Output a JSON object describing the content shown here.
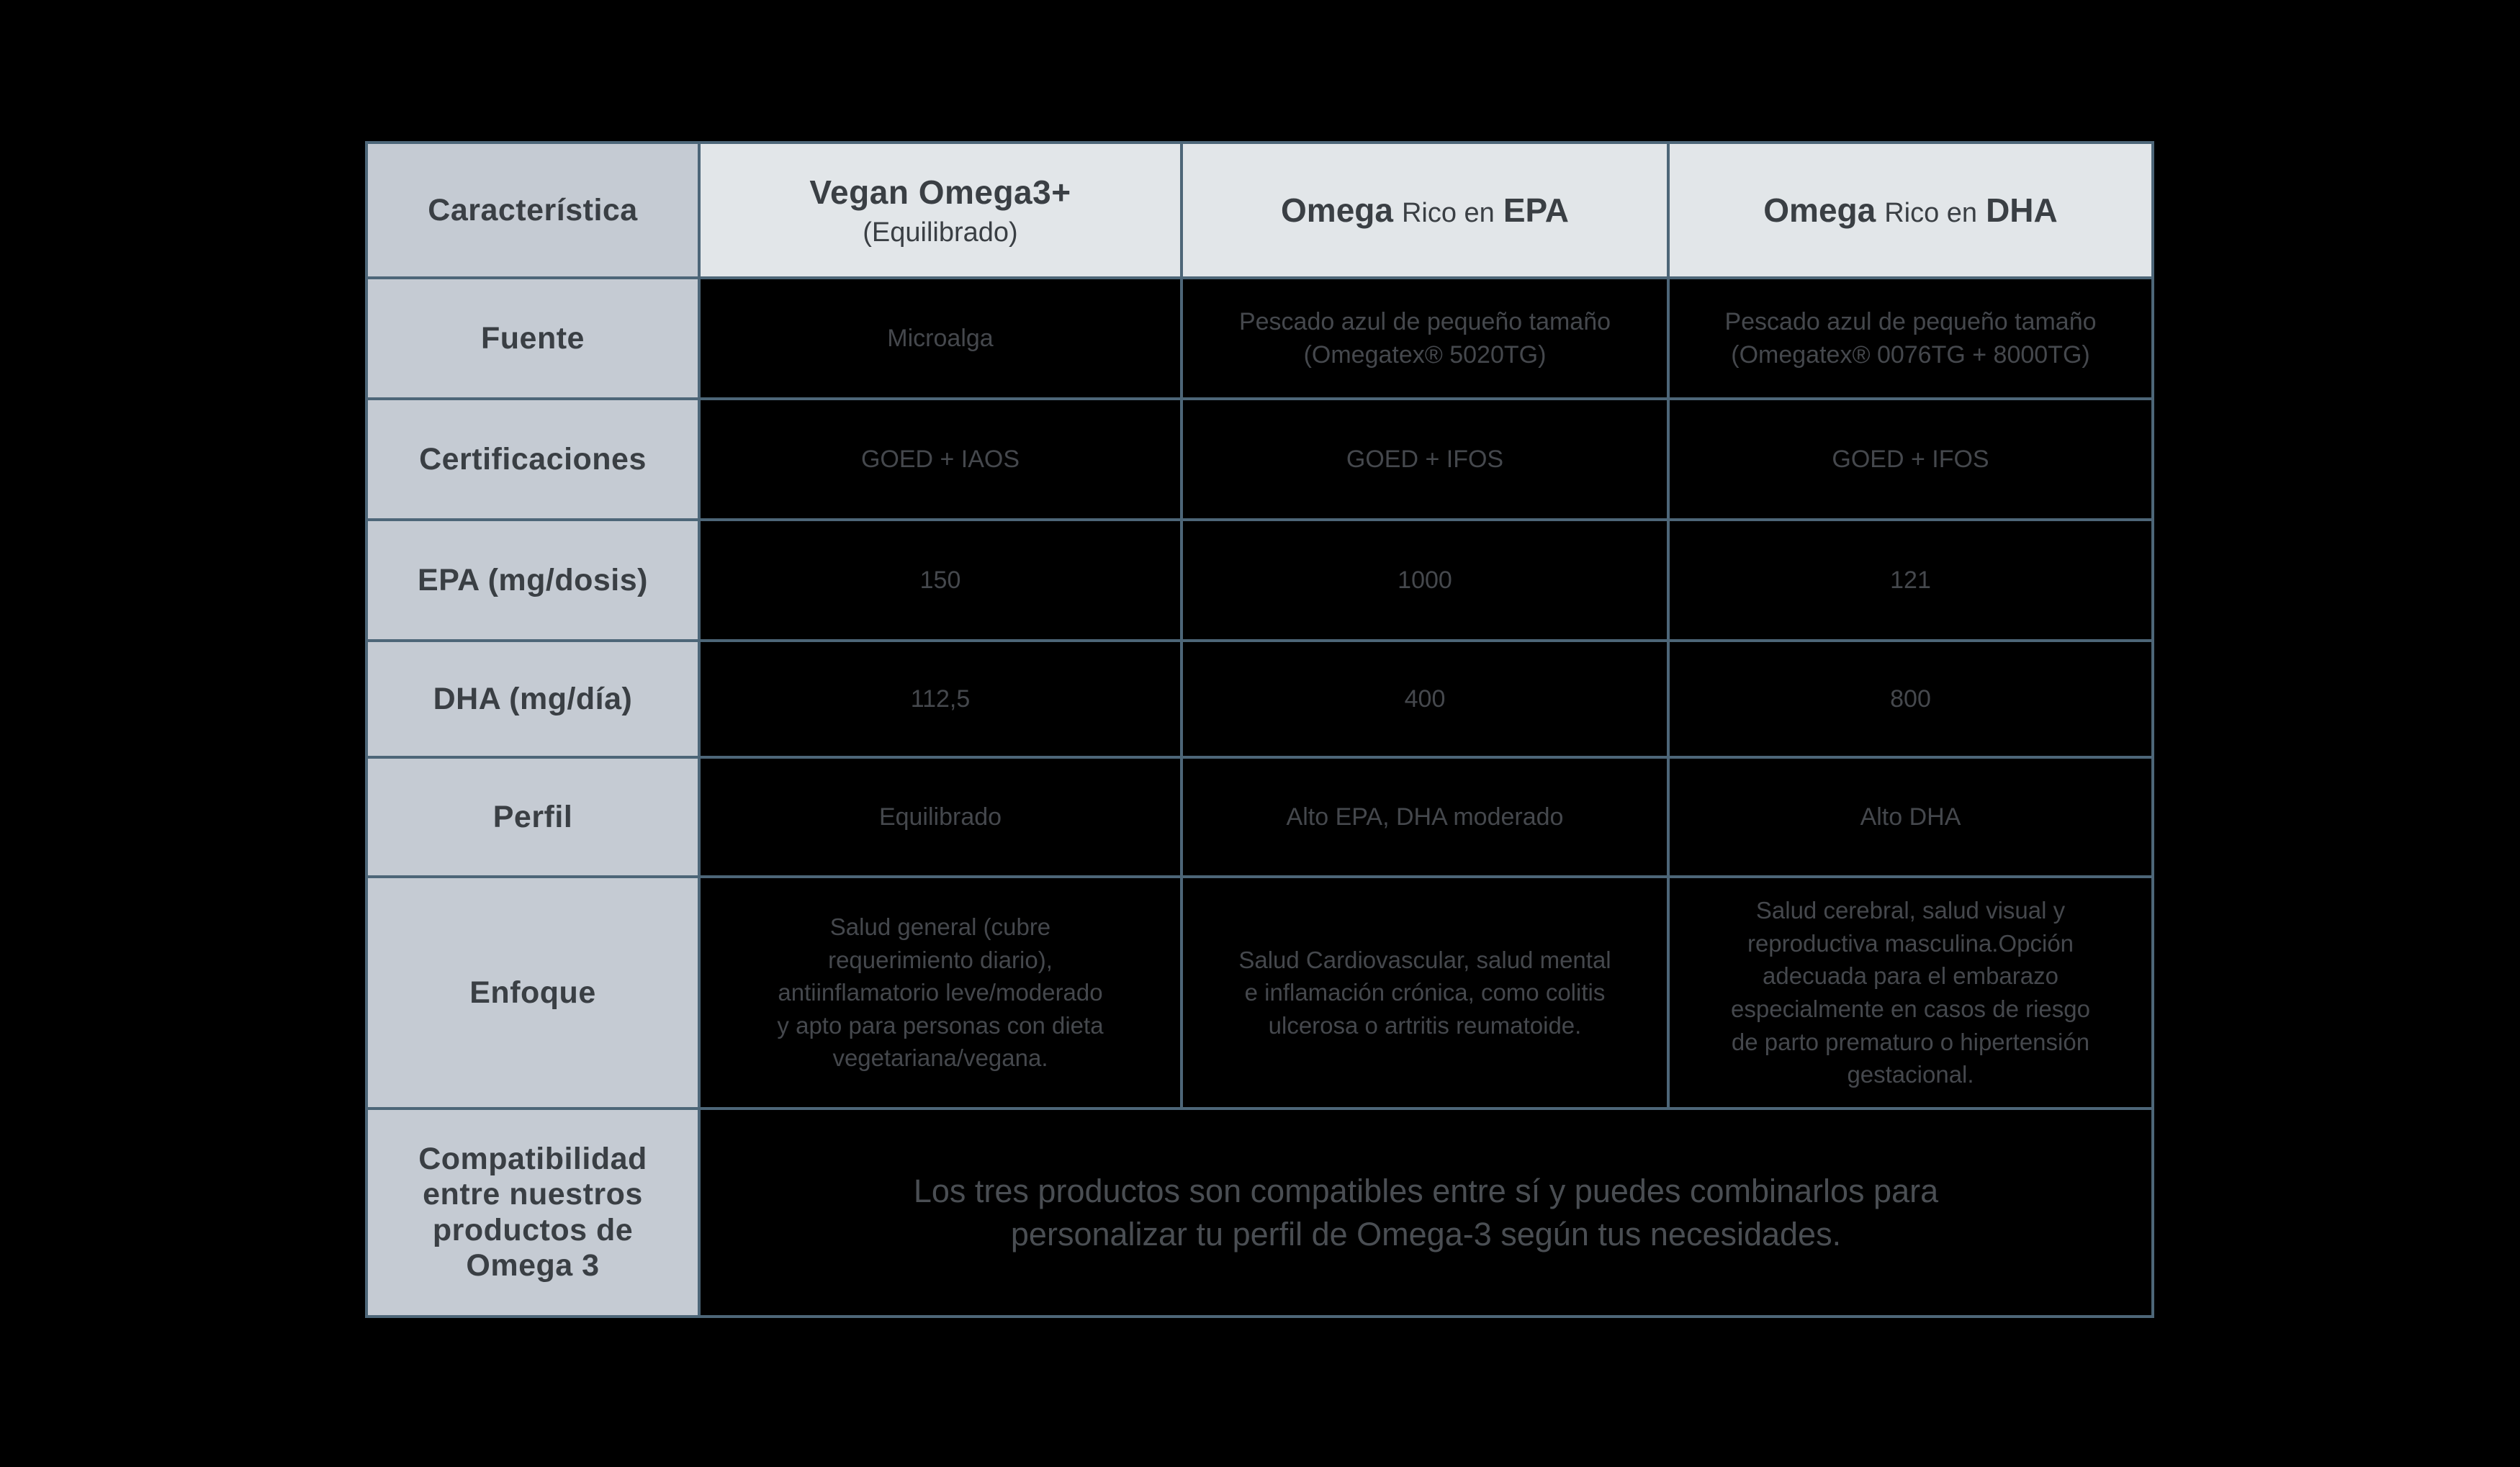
{
  "page": {
    "background_color": "#000000"
  },
  "table": {
    "colors": {
      "grid_line": "#4d6678",
      "label_column_bg": "#c5cbd3",
      "header_bg": "#e2e6e9",
      "data_cell_bg": "#000000",
      "label_text": "#3a3f44",
      "value_text": "#45484d"
    },
    "header": {
      "feature_label": "Característica",
      "products": [
        {
          "name": "Vegan Omega3+",
          "qualifier": "(Equilibrado)"
        },
        {
          "brand": "Omega",
          "descriptor": "Rico en",
          "highlight": "EPA"
        },
        {
          "brand": "Omega",
          "descriptor": "Rico en",
          "highlight": "DHA"
        }
      ]
    },
    "rows": [
      {
        "label": "Fuente",
        "values": [
          "Microalga",
          "Pescado azul de pequeño tamaño\n(Omegatex® 5020TG)",
          "Pescado azul de pequeño tamaño\n(Omegatex® 0076TG + 8000TG)"
        ]
      },
      {
        "label": "Certificaciones",
        "values": [
          "GOED + IAOS",
          "GOED + IFOS",
          "GOED + IFOS"
        ]
      },
      {
        "label": "EPA (mg/dosis)",
        "values": [
          "150",
          "1000",
          "121"
        ]
      },
      {
        "label": "DHA (mg/día)",
        "values": [
          "112,5",
          "400",
          "800"
        ]
      },
      {
        "label": "Perfil",
        "values": [
          "Equilibrado",
          "Alto EPA, DHA moderado",
          "Alto DHA"
        ]
      },
      {
        "label": "Enfoque",
        "values": [
          "Salud general (cubre\nrequerimiento diario),\nantiinflamatorio leve/moderado\ny apto para personas con dieta\nvegetariana/vegana.",
          "Salud Cardiovascular, salud mental\ne inflamación crónica, como colitis\nulcerosa o artritis reumatoide.",
          "Salud cerebral, salud visual y\nreproductiva masculina.Opción\nadecuada para el embarazo\nespecialmente en casos de riesgo\nde parto prematuro o hipertensión\ngestacional."
        ]
      }
    ],
    "footer": {
      "label": "Compatibilidad\nentre nuestros\nproductos de\nOmega 3",
      "message": "Los tres productos son compatibles entre sí y puedes combinarlos para\npersonalizar tu perfil de Omega-3 según tus necesidades."
    }
  }
}
